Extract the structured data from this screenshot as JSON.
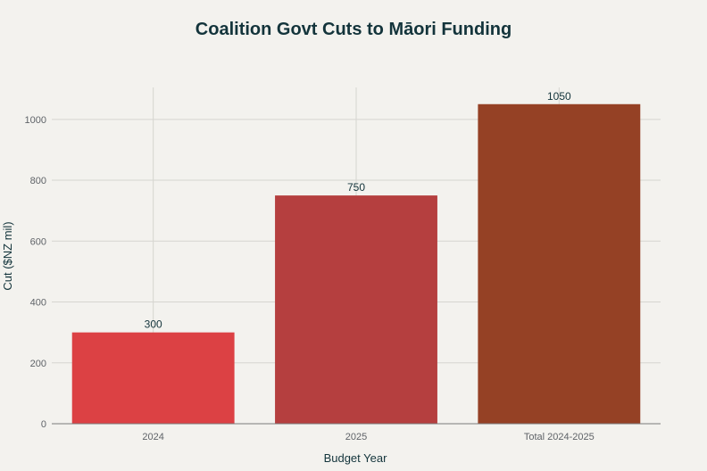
{
  "chart_data": {
    "type": "bar",
    "title": "Coalition Govt Cuts to Māori Funding",
    "xlabel": "Budget Year",
    "ylabel": "Cut ($NZ mil)",
    "categories": [
      "2024",
      "2025",
      "Total 2024-2025"
    ],
    "values": [
      300,
      750,
      1050
    ],
    "data_labels": [
      "300",
      "750",
      "1050"
    ],
    "colors": [
      "#dc4144",
      "#b53f3f",
      "#954125"
    ],
    "ylim": [
      0,
      1105
    ],
    "yticks": [
      0,
      200,
      400,
      600,
      800,
      1000
    ],
    "grid": true,
    "legend": "none"
  },
  "colors": {
    "background": "#f3f2ee",
    "grid": "#d6d5d0",
    "text": "#13343b"
  }
}
